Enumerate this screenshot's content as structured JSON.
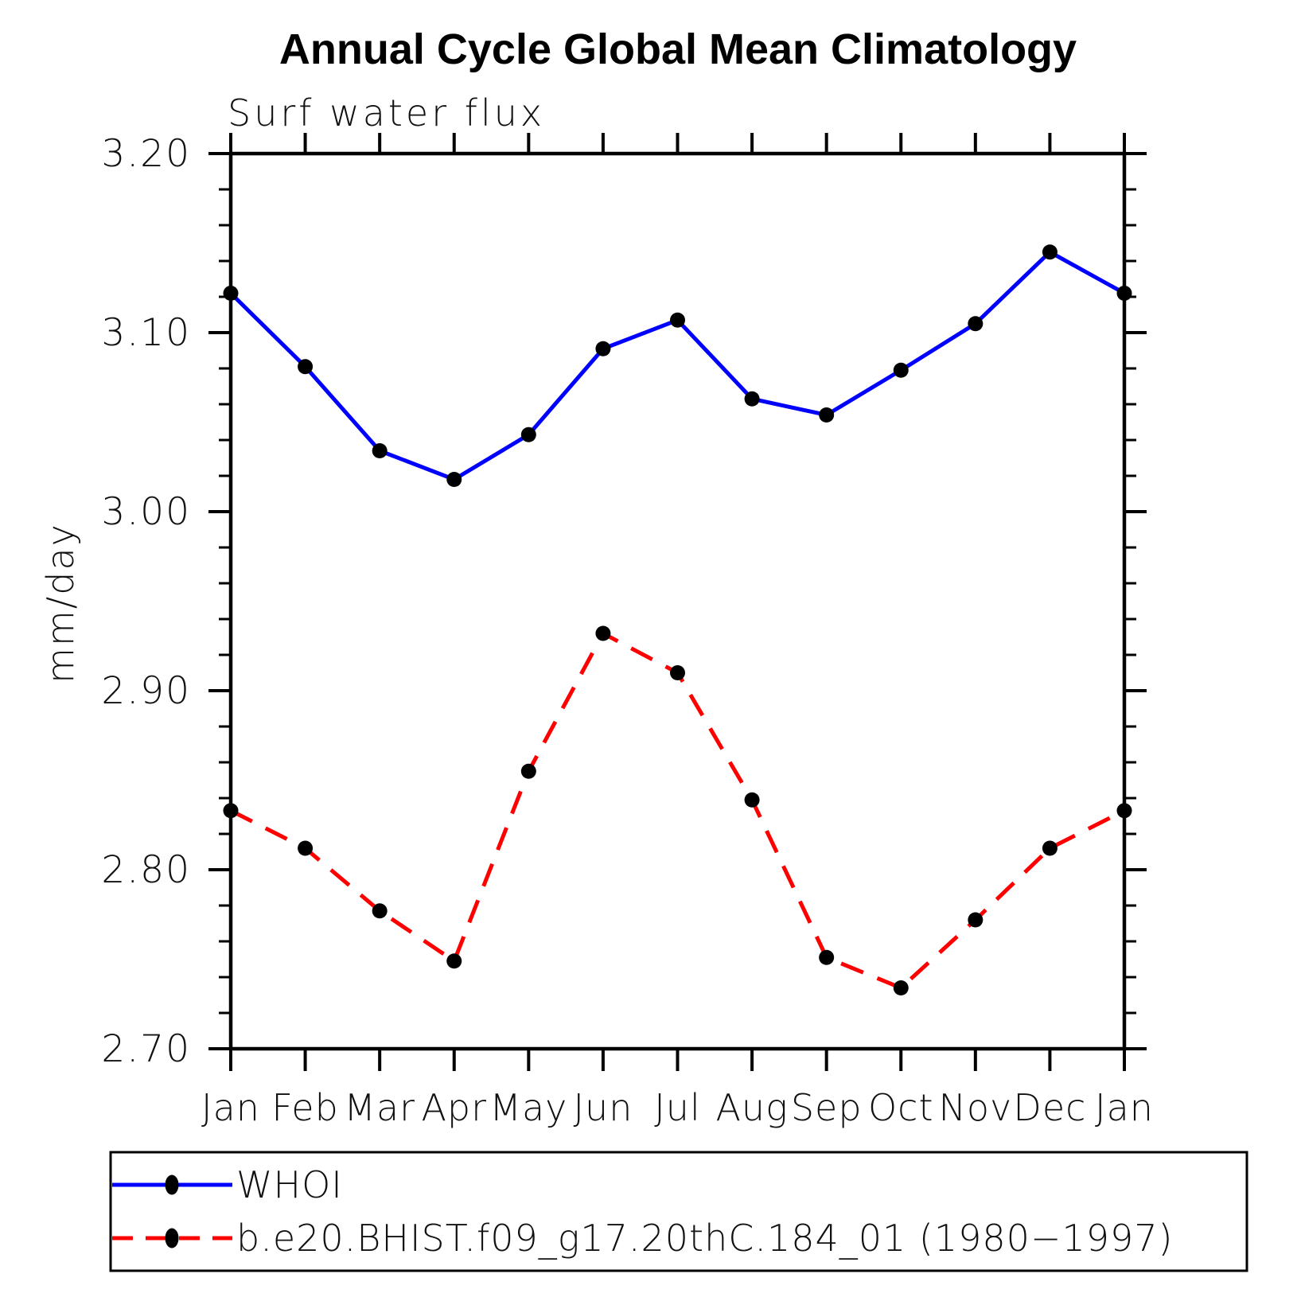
{
  "header": {
    "title": "Annual Cycle Global Mean Climatology",
    "subtitle": "Surf water flux"
  },
  "colors": {
    "whoi_line": "#0000ff",
    "model_line": "#ff0000",
    "marker": "#000000",
    "axis": "#000000",
    "background": "#ffffff"
  },
  "chart_data": {
    "type": "line",
    "title": "Annual Cycle Global Mean Climatology",
    "subtitle": "Surf water flux",
    "ylabel": "mm/day",
    "xlabel": "",
    "categories": [
      "Jan",
      "Feb",
      "Mar",
      "Apr",
      "May",
      "Jun",
      "Jul",
      "Aug",
      "Sep",
      "Oct",
      "Nov",
      "Dec",
      "Jan"
    ],
    "ylim": [
      2.7,
      3.2
    ],
    "ytick_major_step": 0.1,
    "ytick_minor_step": 0.02,
    "ytick_labels": [
      "3.20",
      "3.10",
      "3.00",
      "2.90",
      "2.80",
      "2.70"
    ],
    "grid": false,
    "legend_position": "bottom",
    "series": [
      {
        "name": "WHOI",
        "color": "#0000ff",
        "style": "solid",
        "marker": "filled-circle",
        "values": [
          3.122,
          3.081,
          3.034,
          3.018,
          3.043,
          3.091,
          3.107,
          3.063,
          3.054,
          3.079,
          3.105,
          3.145,
          3.122
        ]
      },
      {
        "name": "b.e20.BHIST.f09_g17.20thC.184_01 (1980−1997)",
        "color": "#ff0000",
        "style": "dashed",
        "marker": "filled-circle",
        "values": [
          2.833,
          2.812,
          2.777,
          2.749,
          2.855,
          2.932,
          2.91,
          2.839,
          2.751,
          2.734,
          2.772,
          2.812,
          2.833
        ]
      }
    ]
  }
}
